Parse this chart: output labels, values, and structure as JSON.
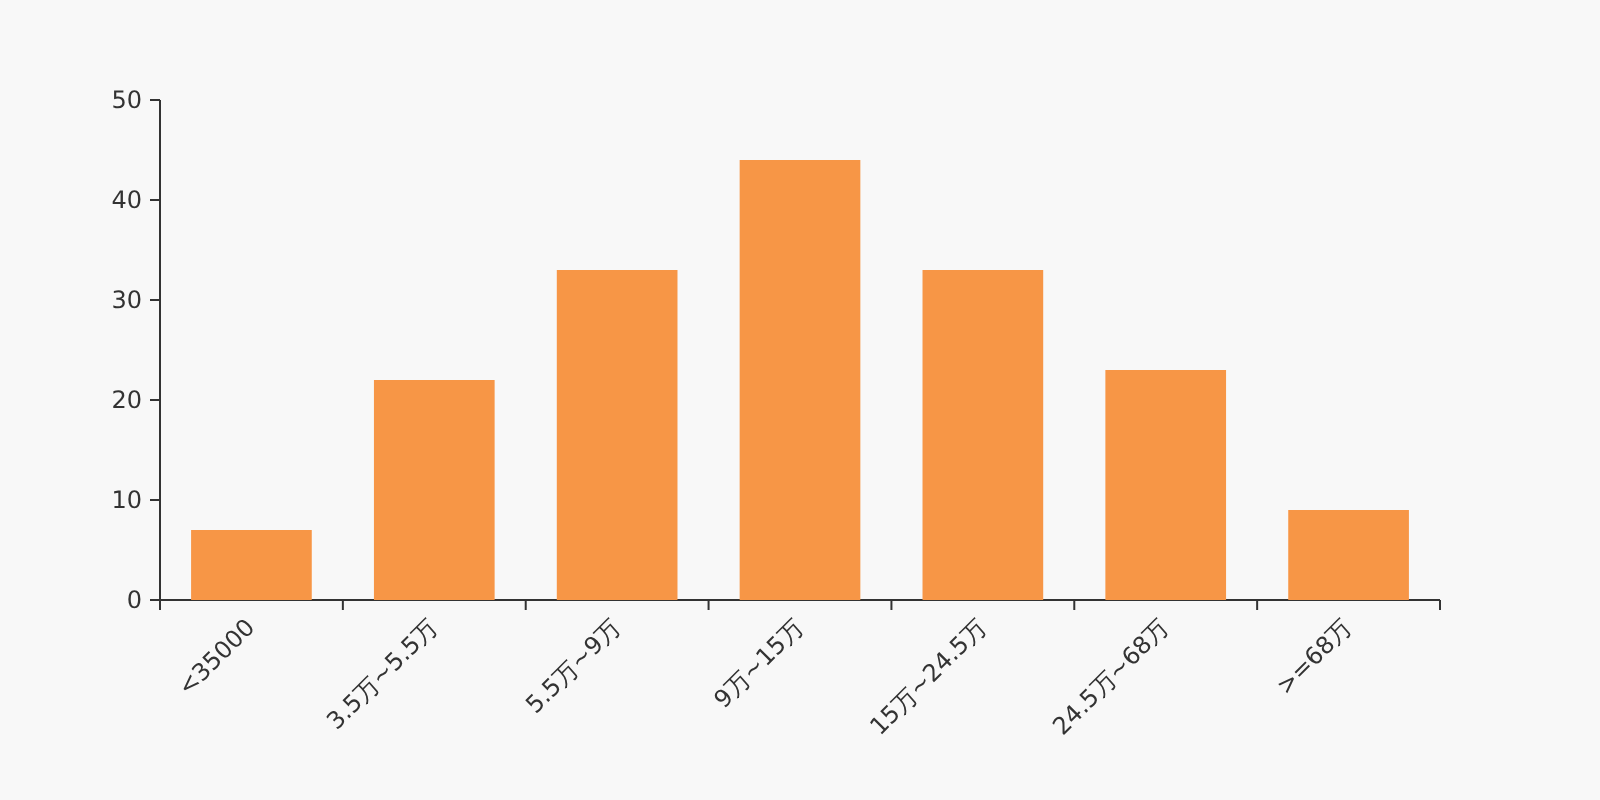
{
  "chart_data": {
    "type": "bar",
    "categories": [
      "<35000",
      "3.5万~5.5万",
      "5.5万~9万",
      "9万~15万",
      "15万~24.5万",
      "24.5万~68万",
      ">=68万"
    ],
    "values": [
      7,
      22,
      33,
      44,
      33,
      23,
      9
    ],
    "color": "#f79646",
    "ylim": [
      0,
      50
    ],
    "yticks": [
      0,
      10,
      20,
      30,
      40,
      50
    ]
  }
}
